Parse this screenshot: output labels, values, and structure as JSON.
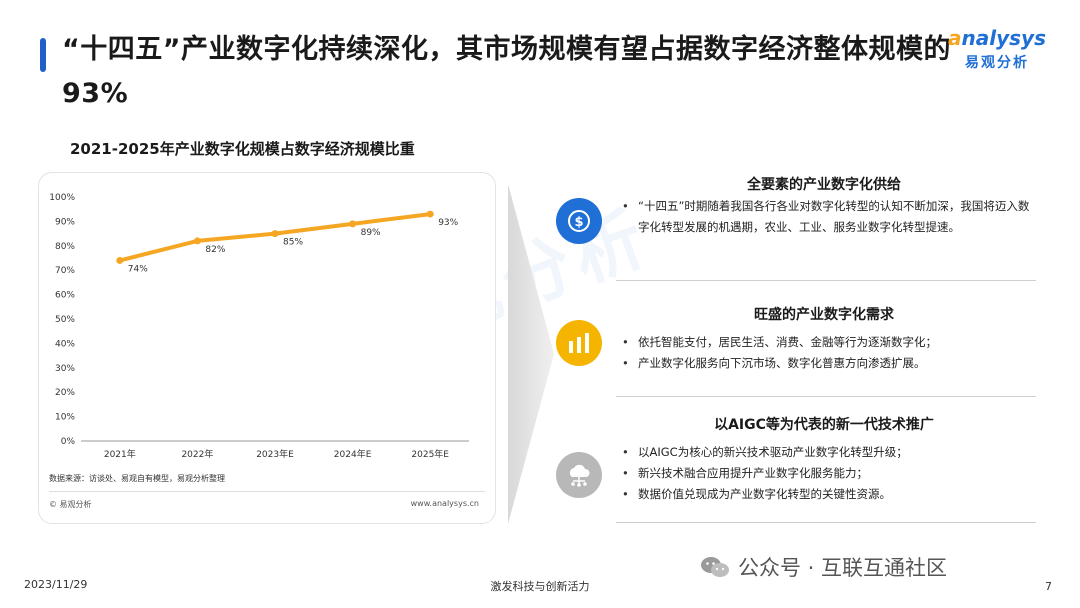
{
  "header": {
    "title": "“十四五”产业数字化持续深化，其市场规模有望占据数字经济整体规模的93%",
    "brand_en_prefix": "a",
    "brand_en_rest": "nalysys",
    "brand_cn": "易观分析"
  },
  "watermark": {
    "text": "易观分析"
  },
  "chart": {
    "source": "数据来源：访谈处、易观自有模型，易观分析整理",
    "copyright": "© 易观分析",
    "website": "www.analysys.cn"
  },
  "chart_data": {
    "type": "line",
    "title": "2021-2025年产业数字化规模占数字经济规模比重",
    "categories": [
      "2021年",
      "2022年",
      "2023年E",
      "2024年E",
      "2025年E"
    ],
    "series": [
      {
        "values": [
          74,
          82,
          85,
          89,
          93
        ],
        "labels": [
          "74%",
          "82%",
          "85%",
          "89%",
          "93%"
        ]
      }
    ],
    "ylim": [
      0,
      100
    ],
    "yticks": [
      "0%",
      "10%",
      "20%",
      "30%",
      "40%",
      "50%",
      "60%",
      "70%",
      "80%",
      "90%",
      "100%"
    ],
    "grid": false,
    "colors": {
      "line": "#f5a623",
      "marker": "#f5a623"
    }
  },
  "sections": [
    {
      "icon": "dollar-cycle-icon",
      "color": "#1f6fd6",
      "title": "全要素的产业数字化供给",
      "items": [
        "“十四五”时期随着我国各行各业对数字化转型的认知不断加深，我国将迈入数字化转型发展的机遇期，农业、工业、服务业数字化转型提速。"
      ]
    },
    {
      "icon": "building-chart-icon",
      "color": "#f5b400",
      "title": "旺盛的产业数字化需求",
      "items": [
        "依托智能支付，居民生活、消费、金融等行为逐渐数字化；",
        "产业数字化服务向下沉市场、数字化普惠方向渗透扩展。"
      ]
    },
    {
      "icon": "cloud-network-icon",
      "color": "#b8b8b8",
      "title": "以AIGC等为代表的新一代技术推广",
      "items": [
        "以AIGC为核心的新兴技术驱动产业数字化转型升级；",
        "新兴技术融合应用提升产业数字化服务能力；",
        "数据价值兑现成为产业数字化转型的关键性资源。"
      ]
    }
  ],
  "footer": {
    "date": "2023/11/29",
    "center": "激发科技与创新活力",
    "wechat": "公众号 · 互联互通社区",
    "page": "7"
  }
}
